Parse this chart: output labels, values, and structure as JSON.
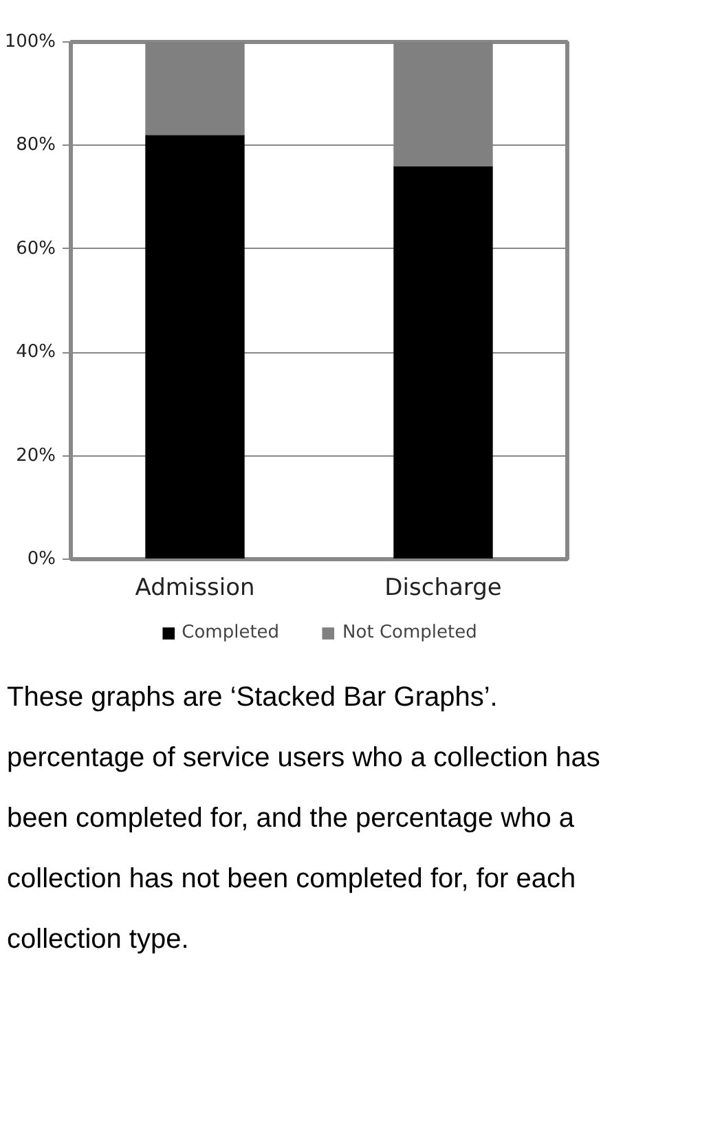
{
  "chart_data": {
    "type": "bar",
    "stacked": true,
    "categories": [
      "Admission",
      "Discharge"
    ],
    "series": [
      {
        "name": "Completed",
        "color": "#000000",
        "values": [
          82,
          76
        ]
      },
      {
        "name": "Not Completed",
        "color": "#808080",
        "values": [
          18,
          24
        ]
      }
    ],
    "ylim": [
      0,
      100
    ],
    "yticks": [
      {
        "value": 0,
        "label": "0%"
      },
      {
        "value": 20,
        "label": "20%"
      },
      {
        "value": 40,
        "label": "40%"
      },
      {
        "value": 60,
        "label": "60%"
      },
      {
        "value": 80,
        "label": "80%"
      },
      {
        "value": 100,
        "label": "100%"
      }
    ],
    "grid": "y",
    "legend": "bottom",
    "annotations": [
      "These graphs are ‘Stacked Bar Graphs’. percentage of service users who a collection has been completed for, and the percentage who a collection has not been completed for, for each collection type."
    ]
  }
}
